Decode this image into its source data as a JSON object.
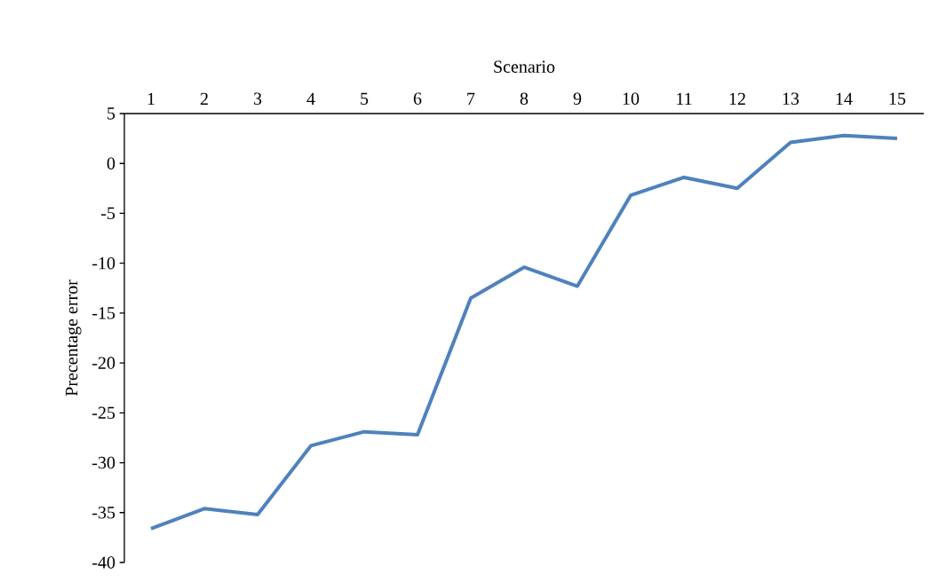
{
  "chart_data": {
    "type": "line",
    "xlabel": "Scenario",
    "ylabel": "Precentage error",
    "categories": [
      "1",
      "2",
      "3",
      "4",
      "5",
      "6",
      "7",
      "8",
      "9",
      "10",
      "11",
      "12",
      "13",
      "14",
      "15"
    ],
    "series": [
      {
        "color": "#4f81bd",
        "values": [
          -36.6,
          -34.6,
          -35.2,
          -28.3,
          -26.9,
          -27.2,
          -13.5,
          -10.4,
          -12.3,
          -3.2,
          -1.4,
          -2.5,
          2.1,
          2.8,
          2.5
        ]
      }
    ],
    "ylim": [
      -40,
      5
    ],
    "yticks": [
      -40,
      -35,
      -30,
      -25,
      -20,
      -15,
      -10,
      -5,
      0,
      5
    ],
    "grid": false,
    "marker": "none",
    "line_style": "solid"
  }
}
